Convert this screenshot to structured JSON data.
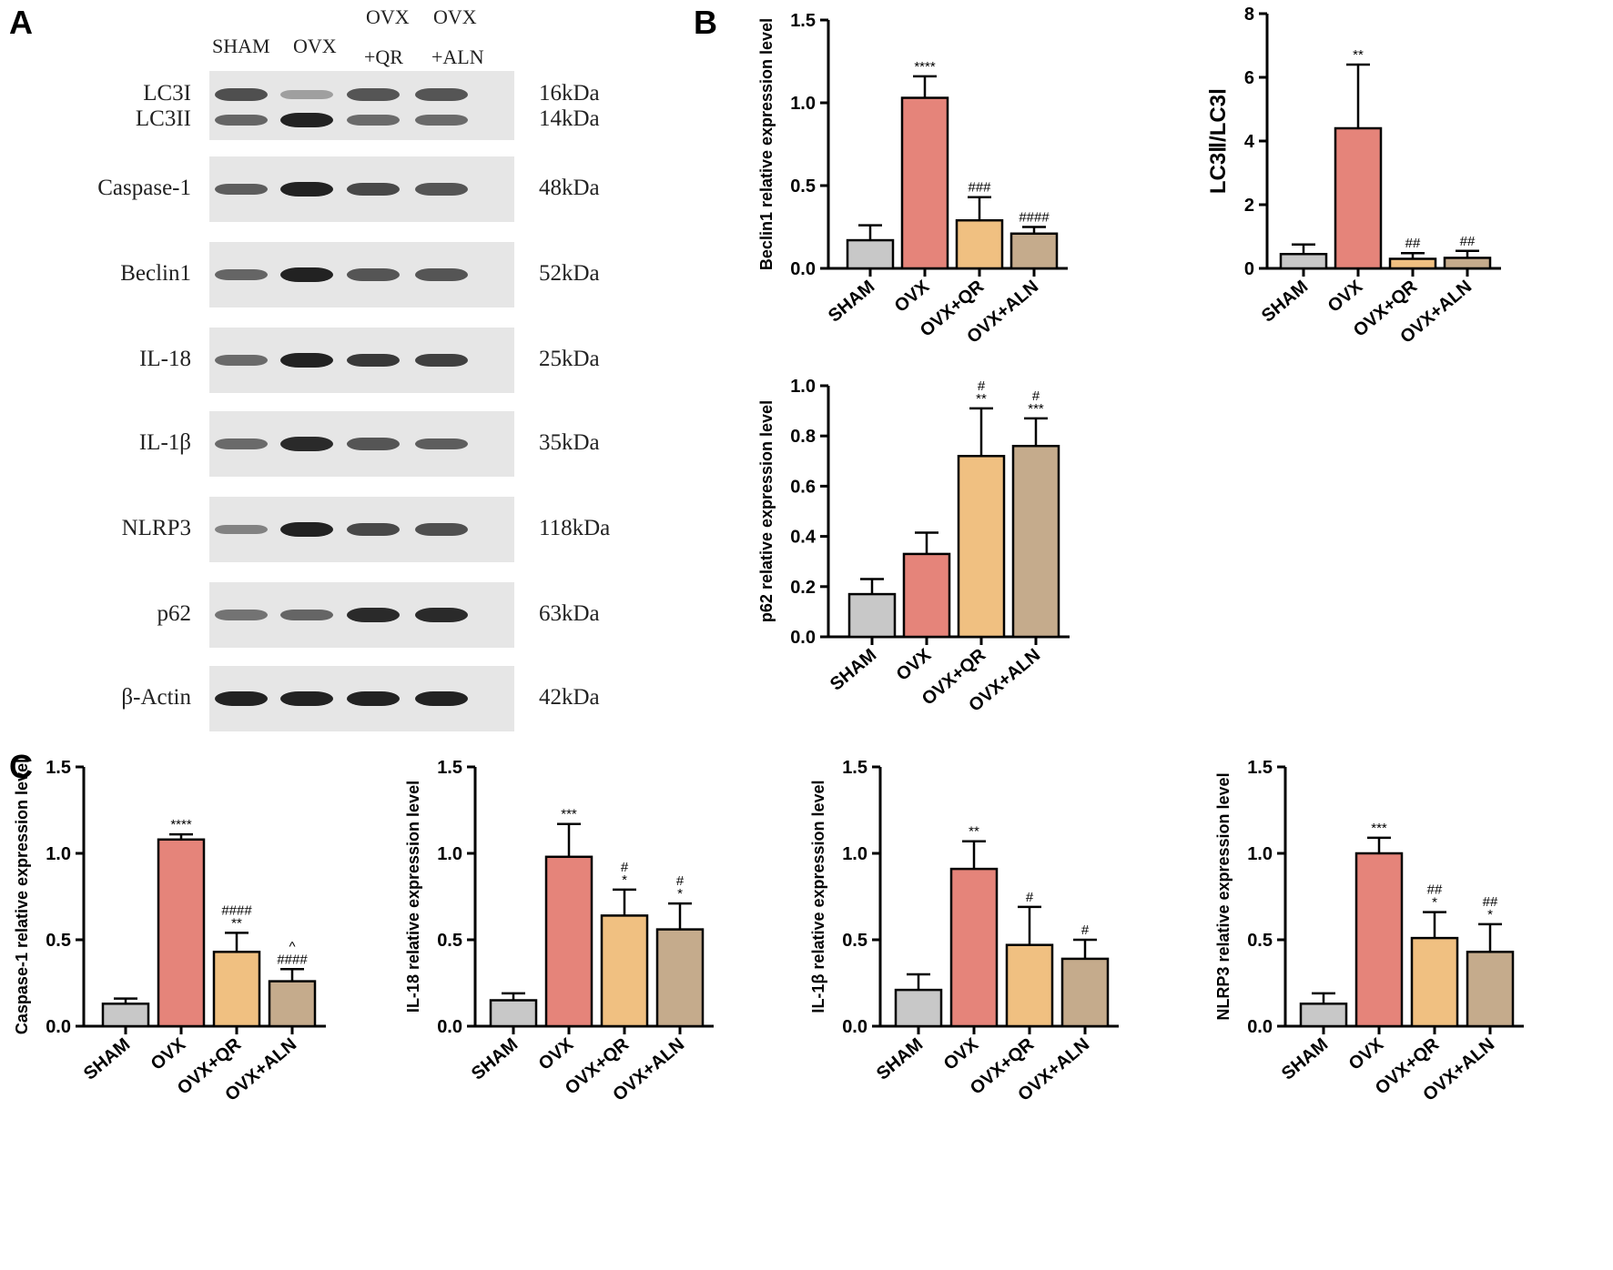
{
  "panels": {
    "a": "A",
    "b": "B",
    "c": "C"
  },
  "western_blot": {
    "lanes": [
      {
        "line1": "SHAM",
        "line2": ""
      },
      {
        "line1": "OVX",
        "line2": ""
      },
      {
        "line1": "OVX",
        "line2": "+QR"
      },
      {
        "line1": "OVX",
        "line2": "+ALN"
      }
    ],
    "blots": [
      {
        "labels": [
          "LC3I",
          "LC3II"
        ],
        "kda": [
          "16kDa",
          "14kDa"
        ],
        "intensity": [
          [
            0.7,
            0.15,
            0.65,
            0.65
          ],
          [
            0.55,
            1.0,
            0.5,
            0.5
          ]
        ]
      },
      {
        "labels": [
          "Caspase-1"
        ],
        "kda": [
          "48kDa"
        ],
        "intensity": [
          [
            0.6,
            1.0,
            0.75,
            0.65
          ]
        ]
      },
      {
        "labels": [
          "Beclin1"
        ],
        "kda": [
          "52kDa"
        ],
        "intensity": [
          [
            0.55,
            1.0,
            0.65,
            0.65
          ]
        ]
      },
      {
        "labels": [
          "IL-18"
        ],
        "kda": [
          "25kDa"
        ],
        "intensity": [
          [
            0.5,
            1.0,
            0.85,
            0.8
          ]
        ]
      },
      {
        "labels": [
          "IL-1β"
        ],
        "kda": [
          "35kDa"
        ],
        "intensity": [
          [
            0.5,
            0.95,
            0.65,
            0.6
          ]
        ]
      },
      {
        "labels": [
          "NLRP3"
        ],
        "kda": [
          "118kDa"
        ],
        "intensity": [
          [
            0.35,
            1.0,
            0.75,
            0.7
          ]
        ]
      },
      {
        "labels": [
          "p62"
        ],
        "kda": [
          "63kDa"
        ],
        "intensity": [
          [
            0.45,
            0.55,
            0.95,
            0.95
          ]
        ]
      },
      {
        "labels": [
          "β-Actin"
        ],
        "kda": [
          "42kDa"
        ],
        "intensity": [
          [
            1.0,
            1.0,
            1.0,
            1.0
          ]
        ]
      }
    ]
  },
  "colors": {
    "SHAM": "#c8c8c8",
    "OVX": "#e5847a",
    "OVX+QR": "#f0c081",
    "OVX+ALN": "#c5ab8c"
  },
  "chart_data": [
    {
      "type": "bar",
      "ylabel": "Beclin1 relative expression level",
      "categories": [
        "SHAM",
        "OVX",
        "OVX+QR",
        "OVX+ALN"
      ],
      "values": [
        0.17,
        1.03,
        0.29,
        0.21
      ],
      "errors": [
        0.09,
        0.13,
        0.14,
        0.04
      ],
      "ylim": [
        0,
        1.5
      ],
      "yticks": [
        "0.0",
        "0.5",
        "1.0",
        "1.5"
      ],
      "annotations": [
        [],
        [
          "****"
        ],
        [
          "###"
        ],
        [
          "####"
        ]
      ]
    },
    {
      "type": "bar",
      "ylabel": "LC3Ⅱ/LC3Ⅰ",
      "categories": [
        "SHAM",
        "OVX",
        "OVX+QR",
        "OVX+ALN"
      ],
      "values": [
        0.45,
        4.4,
        0.3,
        0.33
      ],
      "errors": [
        0.3,
        2.0,
        0.18,
        0.22
      ],
      "ylim": [
        0,
        8
      ],
      "yticks": [
        "0",
        "2",
        "4",
        "6",
        "8"
      ],
      "annotations": [
        [],
        [
          "**"
        ],
        [
          "##"
        ],
        [
          "##"
        ]
      ]
    },
    {
      "type": "bar",
      "ylabel": "p62 relative expression level",
      "categories": [
        "SHAM",
        "OVX",
        "OVX+QR",
        "OVX+ALN"
      ],
      "values": [
        0.17,
        0.33,
        0.72,
        0.76
      ],
      "errors": [
        0.06,
        0.085,
        0.19,
        0.11
      ],
      "ylim": [
        0,
        1.0
      ],
      "yticks": [
        "0.0",
        "0.2",
        "0.4",
        "0.6",
        "0.8",
        "1.0"
      ],
      "annotations": [
        [],
        [],
        [
          "#",
          "**"
        ],
        [
          "#",
          "***"
        ]
      ]
    },
    {
      "type": "bar",
      "ylabel": "Caspase-1 relative expression level",
      "categories": [
        "SHAM",
        "OVX",
        "OVX+QR",
        "OVX+ALN"
      ],
      "values": [
        0.13,
        1.08,
        0.43,
        0.26
      ],
      "errors": [
        0.03,
        0.03,
        0.11,
        0.07
      ],
      "ylim": [
        0,
        1.5
      ],
      "yticks": [
        "0.0",
        "0.5",
        "1.0",
        "1.5"
      ],
      "annotations": [
        [],
        [
          "****"
        ],
        [
          "####",
          "**"
        ],
        [
          "^",
          "####"
        ]
      ]
    },
    {
      "type": "bar",
      "ylabel": "IL-18 relative expression level",
      "categories": [
        "SHAM",
        "OVX",
        "OVX+QR",
        "OVX+ALN"
      ],
      "values": [
        0.15,
        0.98,
        0.64,
        0.56
      ],
      "errors": [
        0.04,
        0.19,
        0.15,
        0.15
      ],
      "ylim": [
        0,
        1.5
      ],
      "yticks": [
        "0.0",
        "0.5",
        "1.0",
        "1.5"
      ],
      "annotations": [
        [],
        [
          "***"
        ],
        [
          "#",
          "*"
        ],
        [
          "#",
          "*"
        ]
      ]
    },
    {
      "type": "bar",
      "ylabel": "IL-1β relative expression level",
      "categories": [
        "SHAM",
        "OVX",
        "OVX+QR",
        "OVX+ALN"
      ],
      "values": [
        0.21,
        0.91,
        0.47,
        0.39
      ],
      "errors": [
        0.09,
        0.16,
        0.22,
        0.11
      ],
      "ylim": [
        0,
        1.5
      ],
      "yticks": [
        "0.0",
        "0.5",
        "1.0",
        "1.5"
      ],
      "annotations": [
        [],
        [
          "**"
        ],
        [
          "#"
        ],
        [
          "#"
        ]
      ]
    },
    {
      "type": "bar",
      "ylabel": "NLRP3 relative expression level",
      "categories": [
        "SHAM",
        "OVX",
        "OVX+QR",
        "OVX+ALN"
      ],
      "values": [
        0.13,
        1.0,
        0.51,
        0.43
      ],
      "errors": [
        0.06,
        0.09,
        0.15,
        0.16
      ],
      "ylim": [
        0,
        1.5
      ],
      "yticks": [
        "0.0",
        "0.5",
        "1.0",
        "1.5"
      ],
      "annotations": [
        [],
        [
          "***"
        ],
        [
          "##",
          "*"
        ],
        [
          "##",
          "*"
        ]
      ]
    }
  ]
}
